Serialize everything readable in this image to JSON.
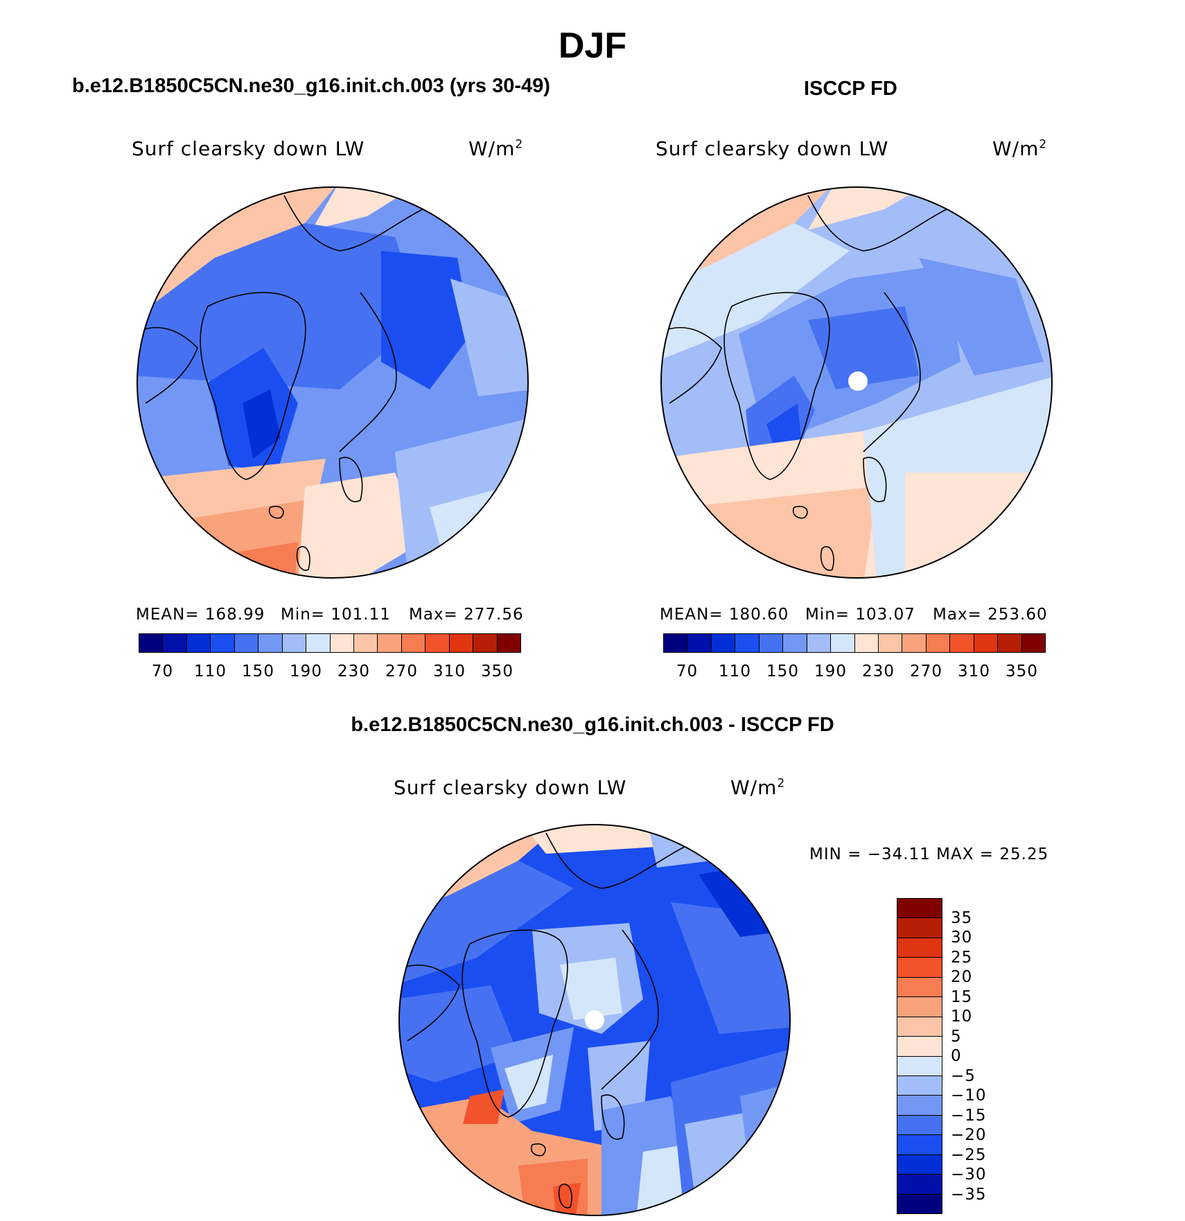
{
  "title": "DJF",
  "colors": {
    "abs_scale": [
      "#00007f",
      "#0010a8",
      "#0230d6",
      "#1b4ef0",
      "#4672f2",
      "#7397f5",
      "#a3bdf8",
      "#d4e6fa",
      "#fde4d4",
      "#fcc5a8",
      "#f9a37d",
      "#f67c52",
      "#f2532b",
      "#df3510",
      "#b51f06",
      "#800000"
    ],
    "diff_scale": [
      "#800000",
      "#b51f06",
      "#df3510",
      "#f2532b",
      "#f67c52",
      "#f9a37d",
      "#fcc5a8",
      "#fde4d4",
      "#d4e6fa",
      "#a3bdf8",
      "#7397f5",
      "#4672f2",
      "#1b4ef0",
      "#0230d6",
      "#0010a8",
      "#00007f"
    ]
  },
  "panels": {
    "model": {
      "title": "b.e12.B1850C5CN.ne30_g16.init.ch.003 (yrs 30-49)",
      "variable": "Surf clearsky down LW",
      "units_base": "W/m",
      "units_exp": "2",
      "mean_label": "MEAN= 168.99",
      "min_label": "Min= 101.11",
      "max_label": "Max= 277.56"
    },
    "obs": {
      "title": "ISCCP FD",
      "variable": "Surf clearsky down LW",
      "units_base": "W/m",
      "units_exp": "2",
      "mean_label": "MEAN= 180.60",
      "min_label": "Min= 103.07",
      "max_label": "Max= 253.60"
    },
    "diff": {
      "title": "b.e12.B1850C5CN.ne30_g16.init.ch.003 - ISCCP FD",
      "variable": "Surf clearsky down LW",
      "units_base": "W/m",
      "units_exp": "2",
      "minmax_label": "MIN = −34.11 MAX =  25.25"
    }
  },
  "colorbars": {
    "abs_ticks": [
      "70",
      "110",
      "150",
      "190",
      "230",
      "270",
      "310",
      "350"
    ],
    "diff_ticks": [
      "35",
      "30",
      "25",
      "20",
      "15",
      "10",
      "5",
      "0",
      "−5",
      "−10",
      "−15",
      "−20",
      "−25",
      "−30",
      "−35"
    ]
  },
  "chart_data": [
    {
      "type": "heatmap",
      "title": "b.e12.B1850C5CN.ne30_g16.init.ch.003 (yrs 30-49)",
      "variable": "Surf clearsky down LW",
      "units": "W/m2",
      "projection": "north polar stereographic",
      "season": "DJF",
      "mean": 168.99,
      "min": 101.11,
      "max": 277.56,
      "contour_levels": [
        70,
        80,
        90,
        100,
        110,
        120,
        130,
        140,
        150,
        160,
        170,
        180,
        190,
        200,
        210,
        220,
        230,
        240,
        250,
        260,
        270,
        280,
        290,
        300,
        310,
        320,
        330,
        340,
        350
      ]
    },
    {
      "type": "heatmap",
      "title": "ISCCP FD",
      "variable": "Surf clearsky down LW",
      "units": "W/m2",
      "projection": "north polar stereographic",
      "season": "DJF",
      "mean": 180.6,
      "min": 103.07,
      "max": 253.6,
      "contour_levels": [
        70,
        80,
        90,
        100,
        110,
        120,
        130,
        140,
        150,
        160,
        170,
        180,
        190,
        200,
        210,
        220,
        230,
        240,
        250,
        260,
        270,
        280,
        290,
        300,
        310,
        320,
        330,
        340,
        350
      ]
    },
    {
      "type": "heatmap",
      "title": "b.e12.B1850C5CN.ne30_g16.init.ch.003 - ISCCP FD",
      "variable": "Surf clearsky down LW",
      "units": "W/m2",
      "projection": "north polar stereographic",
      "season": "DJF",
      "min": -34.11,
      "max": 25.25,
      "contour_levels": [
        -35,
        -30,
        -25,
        -20,
        -15,
        -10,
        -5,
        0,
        5,
        10,
        15,
        20,
        25,
        30,
        35
      ]
    }
  ]
}
